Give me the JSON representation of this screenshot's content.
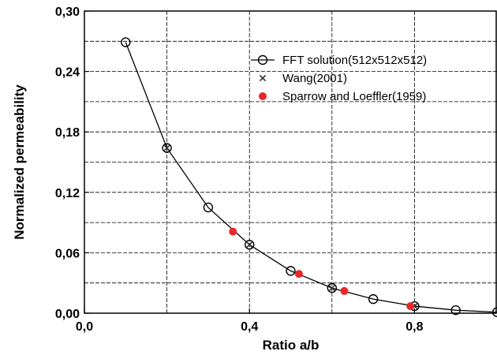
{
  "chart_data": {
    "type": "line",
    "xlabel": "Ratio a/b",
    "ylabel": "Normalized permeability",
    "xlim": [
      0.0,
      1.0
    ],
    "ylim": [
      0.0,
      0.3
    ],
    "x_ticks": [
      0.0,
      0.4,
      0.8
    ],
    "x_tick_labels": [
      "0,0",
      "0,4",
      "0,8"
    ],
    "y_ticks": [
      0.0,
      0.06,
      0.12,
      0.18,
      0.24,
      0.3
    ],
    "y_tick_labels": [
      "0,00",
      "0,06",
      "0,12",
      "0,18",
      "0,24",
      "0,30"
    ],
    "x_grid": [
      0.2,
      0.4,
      0.6,
      0.8
    ],
    "y_grid": [
      0.03,
      0.06,
      0.09,
      0.12,
      0.15,
      0.18,
      0.21,
      0.24,
      0.27
    ],
    "grid": true,
    "grid_style": "dashed",
    "legend_position": "top-right",
    "series": [
      {
        "name": "FFT solution(512x512x512)",
        "marker": "open-circle",
        "line": true,
        "color": "#000000",
        "x": [
          0.1,
          0.2,
          0.3,
          0.4,
          0.5,
          0.6,
          0.7,
          0.8,
          0.9,
          1.0
        ],
        "y": [
          0.269,
          0.164,
          0.105,
          0.068,
          0.042,
          0.025,
          0.014,
          0.007,
          0.003,
          0.001
        ]
      },
      {
        "name": "Wang(2001)",
        "marker": "x",
        "line": false,
        "color": "#333333",
        "x": [
          0.2,
          0.4,
          0.6,
          0.8
        ],
        "y": [
          0.164,
          0.068,
          0.025,
          0.007
        ]
      },
      {
        "name": "Sparrow and Loeffler(1959)",
        "marker": "filled-circle",
        "line": false,
        "color": "#e8282b",
        "x": [
          0.36,
          0.52,
          0.63,
          0.79
        ],
        "y": [
          0.081,
          0.039,
          0.022,
          0.007
        ]
      }
    ]
  }
}
